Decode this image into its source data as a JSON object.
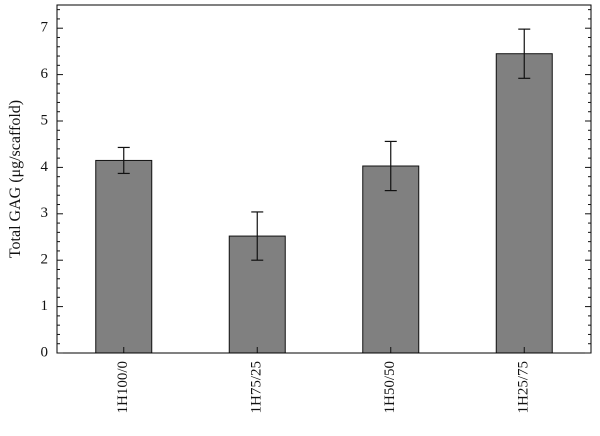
{
  "chart_data": {
    "type": "bar",
    "categories": [
      "1H100/0",
      "1H75/25",
      "1H50/50",
      "1H25/75"
    ],
    "series": [
      {
        "values": [
          4.15,
          2.52,
          4.03,
          6.45
        ],
        "error": [
          0.28,
          0.52,
          0.53,
          0.53
        ]
      }
    ],
    "ylabel": "Total GAG (μg/scaffold)",
    "xlabel": "",
    "ylim": [
      0,
      7.5
    ],
    "yticks": [
      0,
      1,
      2,
      3,
      4,
      5,
      6,
      7
    ],
    "grid": false,
    "bar_color": "#808080",
    "axis_color": "#000000"
  }
}
